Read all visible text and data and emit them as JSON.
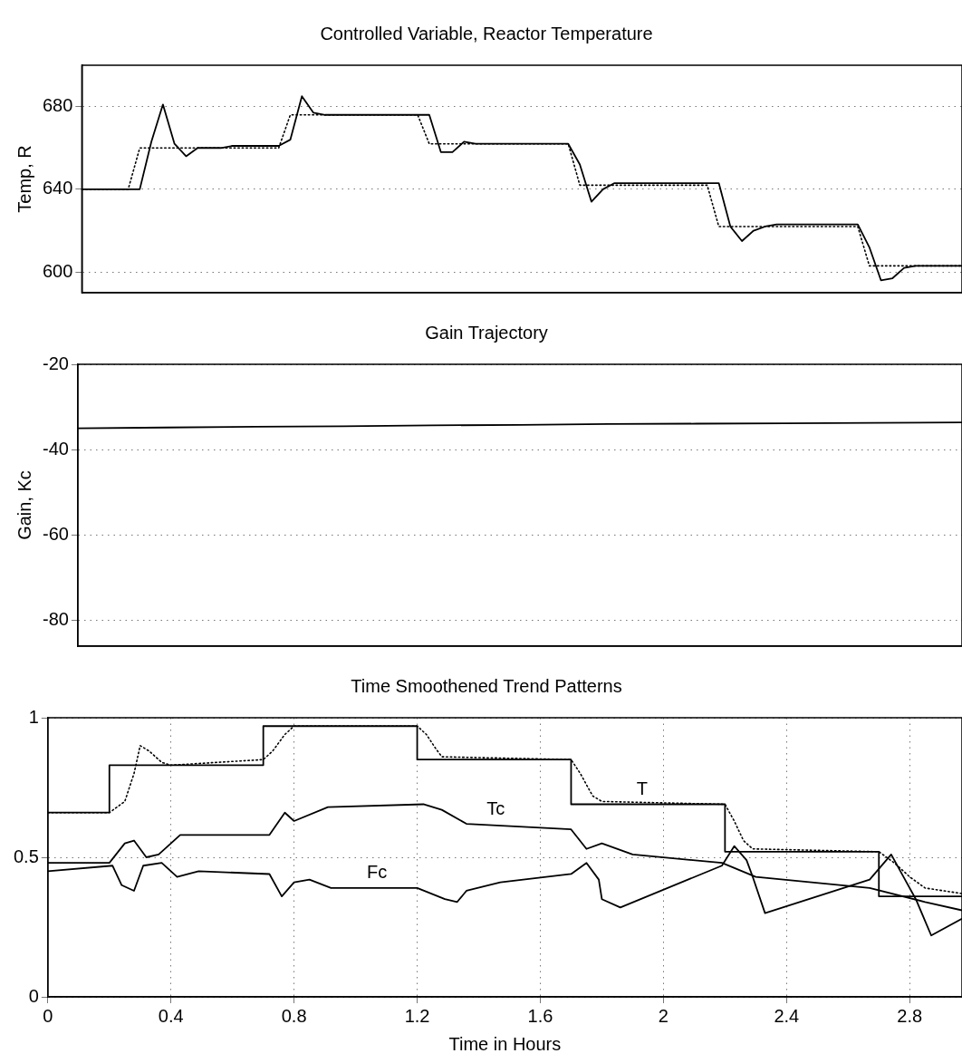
{
  "chart_data": [
    {
      "type": "line",
      "title": "Controlled Variable, Reactor Temperature",
      "ylabel": "Temp, R",
      "categories": [
        null,
        null,
        null,
        null,
        null,
        null,
        null,
        null,
        null,
        null,
        null,
        null,
        null,
        null,
        null,
        null,
        null,
        null,
        null,
        null,
        null,
        null,
        null,
        null,
        null,
        null,
        null,
        null,
        null,
        null,
        null,
        null,
        null,
        null,
        null,
        null,
        null,
        null,
        null,
        null,
        null,
        null,
        null,
        null,
        null,
        null,
        null,
        null,
        null,
        null,
        null,
        null,
        null,
        null,
        null,
        null,
        null,
        null,
        null,
        null,
        null,
        null,
        null,
        null,
        null,
        null,
        null,
        null,
        null,
        null,
        null,
        null,
        null,
        null,
        null,
        null,
        null
      ],
      "ylim": [
        590,
        700
      ],
      "yticks": [
        600,
        640,
        680
      ],
      "grid": "y",
      "tick_labels": "y",
      "series": [
        {
          "color": "#000000",
          "values": [
            640,
            640,
            640,
            640,
            640,
            640,
            663,
            681,
            662,
            656,
            660,
            660,
            660,
            661,
            661,
            661,
            661,
            661,
            664,
            685,
            677,
            676,
            676,
            676,
            676,
            676,
            676,
            676,
            676,
            676,
            676,
            658,
            658,
            663,
            662,
            662,
            662,
            662,
            662,
            662,
            662,
            662,
            662,
            652,
            634,
            640,
            643,
            643,
            643,
            643,
            643,
            643,
            643,
            643,
            643,
            643,
            622,
            615,
            620,
            622,
            623,
            623,
            623,
            623,
            623,
            623,
            623,
            623,
            612,
            596,
            597,
            602,
            603,
            603,
            603,
            603,
            603
          ]
        },
        {
          "line_style": "dotted",
          "color": "#000000",
          "values": [
            640,
            640,
            640,
            640,
            640,
            660,
            660,
            660,
            660,
            660,
            660,
            660,
            660,
            660,
            660,
            660,
            660,
            660,
            676,
            676,
            676,
            676,
            676,
            676,
            676,
            676,
            676,
            676,
            676,
            676,
            662,
            662,
            662,
            662,
            662,
            662,
            662,
            662,
            662,
            662,
            662,
            662,
            662,
            642,
            642,
            642,
            642,
            642,
            642,
            642,
            642,
            642,
            642,
            642,
            642,
            622,
            622,
            622,
            622,
            622,
            622,
            622,
            622,
            622,
            622,
            622,
            622,
            622,
            603,
            603,
            603,
            603,
            603,
            603,
            603,
            603,
            603
          ]
        }
      ]
    },
    {
      "type": "line",
      "title": "Gain Trajectory",
      "ylabel": "Gain, Kc",
      "categories": [
        null,
        null,
        null,
        null,
        null,
        null,
        null,
        null,
        null,
        null,
        null
      ],
      "ylim": [
        -86,
        -20
      ],
      "yticks": [
        -80,
        -60,
        -40,
        -20
      ],
      "grid": "y",
      "tick_labels": "y",
      "series": [
        {
          "color": "#000000",
          "values": [
            -35,
            -34.8,
            -34.6,
            -34.5,
            -34.3,
            -34.2,
            -34,
            -33.9,
            -33.8,
            -33.7,
            -33.6
          ]
        }
      ]
    },
    {
      "type": "line",
      "title": "Time Smoothened Trend Patterns",
      "xlabel": "Time in Hours",
      "xlim": [
        0,
        2.97
      ],
      "xticks": [
        0,
        0.4,
        0.8,
        1.2,
        1.6,
        2,
        2.4,
        2.8
      ],
      "ylim": [
        0,
        1
      ],
      "yticks": [
        0,
        0.5,
        1
      ],
      "grid": true,
      "series": [
        {
          "type": "step",
          "name": "T",
          "color": "#000000",
          "x": [
            0,
            0.2,
            0.7,
            1.2,
            1.7,
            2.2,
            2.7,
            2.97
          ],
          "values": [
            0.66,
            0.83,
            0.97,
            0.85,
            0.69,
            0.52,
            0.36,
            0.36
          ]
        },
        {
          "line_style": "dotted",
          "color": "#000000",
          "x": [
            0,
            0.2,
            0.25,
            0.28,
            0.3,
            0.33,
            0.37,
            0.4,
            0.7,
            0.73,
            0.77,
            0.8,
            1.2,
            1.23,
            1.26,
            1.28,
            1.7,
            1.73,
            1.77,
            1.8,
            2.2,
            2.23,
            2.26,
            2.29,
            2.7,
            2.75,
            2.8,
            2.85,
            2.97
          ],
          "values": [
            0.66,
            0.66,
            0.7,
            0.8,
            0.9,
            0.88,
            0.84,
            0.83,
            0.85,
            0.88,
            0.94,
            0.97,
            0.97,
            0.94,
            0.89,
            0.86,
            0.85,
            0.8,
            0.72,
            0.7,
            0.69,
            0.63,
            0.56,
            0.53,
            0.52,
            0.48,
            0.43,
            0.39,
            0.37
          ]
        },
        {
          "name": "Tc",
          "color": "#000000",
          "x": [
            0,
            0.2,
            0.25,
            0.28,
            0.32,
            0.36,
            0.4,
            0.43,
            0.72,
            0.77,
            0.8,
            0.91,
            1.22,
            1.28,
            1.36,
            1.7,
            1.75,
            1.8,
            1.9,
            2.19,
            2.3,
            2.67,
            2.85,
            2.97
          ],
          "values": [
            0.48,
            0.48,
            0.55,
            0.56,
            0.5,
            0.51,
            0.55,
            0.58,
            0.58,
            0.66,
            0.63,
            0.68,
            0.69,
            0.67,
            0.62,
            0.6,
            0.53,
            0.55,
            0.51,
            0.48,
            0.43,
            0.39,
            0.34,
            0.31
          ]
        },
        {
          "name": "Fc",
          "color": "#000000",
          "x": [
            0,
            0.21,
            0.24,
            0.28,
            0.31,
            0.37,
            0.42,
            0.49,
            0.72,
            0.76,
            0.8,
            0.85,
            0.92,
            1.2,
            1.29,
            1.33,
            1.36,
            1.47,
            1.7,
            1.75,
            1.79,
            1.8,
            1.86,
            2.19,
            2.23,
            2.27,
            2.29,
            2.33,
            2.67,
            2.74,
            2.78,
            2.82,
            2.87,
            2.97
          ],
          "values": [
            0.45,
            0.47,
            0.4,
            0.38,
            0.47,
            0.48,
            0.43,
            0.45,
            0.44,
            0.36,
            0.41,
            0.42,
            0.39,
            0.39,
            0.35,
            0.34,
            0.38,
            0.41,
            0.44,
            0.48,
            0.42,
            0.35,
            0.32,
            0.47,
            0.54,
            0.49,
            0.43,
            0.3,
            0.42,
            0.51,
            0.43,
            0.35,
            0.22,
            0.28
          ]
        }
      ]
    }
  ]
}
